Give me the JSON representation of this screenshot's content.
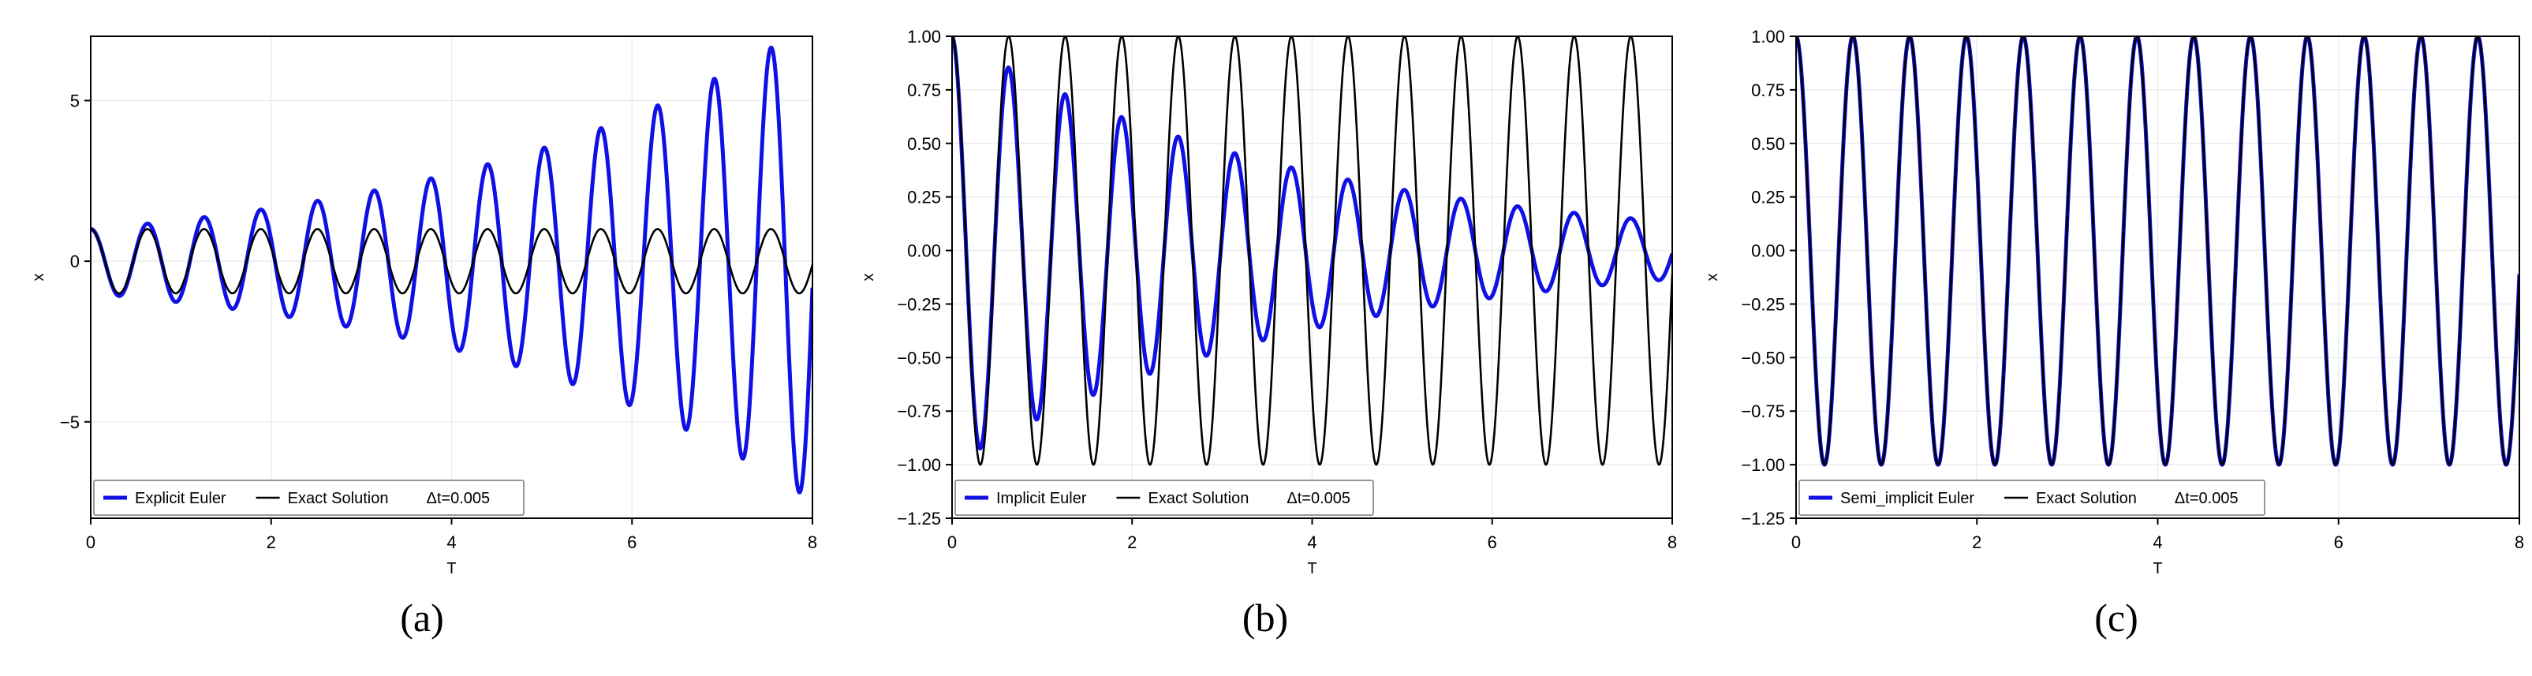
{
  "chart_data": [
    {
      "type": "line",
      "subfigure_label": "(a)",
      "xlabel": "T",
      "ylabel": "x",
      "xlim": [
        0,
        8
      ],
      "ylim": [
        -8,
        7
      ],
      "xticks": [
        "0",
        "2",
        "4",
        "6",
        "8"
      ],
      "yticks": [
        {
          "value": -5,
          "label": "−5"
        },
        {
          "value": 0,
          "label": "0"
        },
        {
          "value": 5,
          "label": "5"
        }
      ],
      "grid": true,
      "legend_position": "bottom-left",
      "annotation": "Δt=0.005",
      "omega": 10,
      "series": [
        {
          "name": "Explicit Euler",
          "color": "#1010e6",
          "model": "cos",
          "amplitude_start": 1.0,
          "amplitude_end": 7.46
        },
        {
          "name": "Exact Solution",
          "color": "#000000",
          "model": "cos",
          "amplitude_start": 1.0,
          "amplitude_end": 1.0
        }
      ]
    },
    {
      "type": "line",
      "subfigure_label": "(b)",
      "xlabel": "T",
      "ylabel": "x",
      "xlim": [
        0,
        8
      ],
      "ylim": [
        -1.25,
        1.0
      ],
      "xticks": [
        "0",
        "2",
        "4",
        "6",
        "8"
      ],
      "yticks": [
        {
          "value": 1.0,
          "label": "1.00"
        },
        {
          "value": 0.75,
          "label": "0.75"
        },
        {
          "value": 0.5,
          "label": "0.50"
        },
        {
          "value": 0.25,
          "label": "0.25"
        },
        {
          "value": 0.0,
          "label": "0.00"
        },
        {
          "value": -0.25,
          "label": "−0.25"
        },
        {
          "value": -0.5,
          "label": "−0.50"
        },
        {
          "value": -0.75,
          "label": "−0.75"
        },
        {
          "value": -1.0,
          "label": "−1.00"
        },
        {
          "value": -1.25,
          "label": "−1.25"
        }
      ],
      "grid": true,
      "legend_position": "bottom-left",
      "annotation": "Δt=0.005",
      "omega": 10,
      "series": [
        {
          "name": "Implicit Euler",
          "color": "#1010e6",
          "model": "cos",
          "amplitude_start": 1.0,
          "amplitude_end": 0.134
        },
        {
          "name": "Exact Solution",
          "color": "#000000",
          "model": "cos",
          "amplitude_start": 1.0,
          "amplitude_end": 1.0
        }
      ]
    },
    {
      "type": "line",
      "subfigure_label": "(c)",
      "xlabel": "T",
      "ylabel": "x",
      "xlim": [
        0,
        8
      ],
      "ylim": [
        -1.25,
        1.0
      ],
      "xticks": [
        "0",
        "2",
        "4",
        "6",
        "8"
      ],
      "yticks": [
        {
          "value": 1.0,
          "label": "1.00"
        },
        {
          "value": 0.75,
          "label": "0.75"
        },
        {
          "value": 0.5,
          "label": "0.50"
        },
        {
          "value": 0.25,
          "label": "0.25"
        },
        {
          "value": 0.0,
          "label": "0.00"
        },
        {
          "value": -0.25,
          "label": "−0.25"
        },
        {
          "value": -0.5,
          "label": "−0.50"
        },
        {
          "value": -0.75,
          "label": "−0.75"
        },
        {
          "value": -1.0,
          "label": "−1.00"
        },
        {
          "value": -1.25,
          "label": "−1.25"
        }
      ],
      "grid": true,
      "legend_position": "bottom-left",
      "annotation": "Δt=0.005",
      "omega": 10,
      "series": [
        {
          "name": "Semi_implicit Euler",
          "color": "#1010e6",
          "model": "cos",
          "amplitude_start": 1.0,
          "amplitude_end": 1.0
        },
        {
          "name": "Exact Solution",
          "color": "#000000",
          "model": "cos",
          "amplitude_start": 1.0,
          "amplitude_end": 1.0
        }
      ]
    }
  ]
}
